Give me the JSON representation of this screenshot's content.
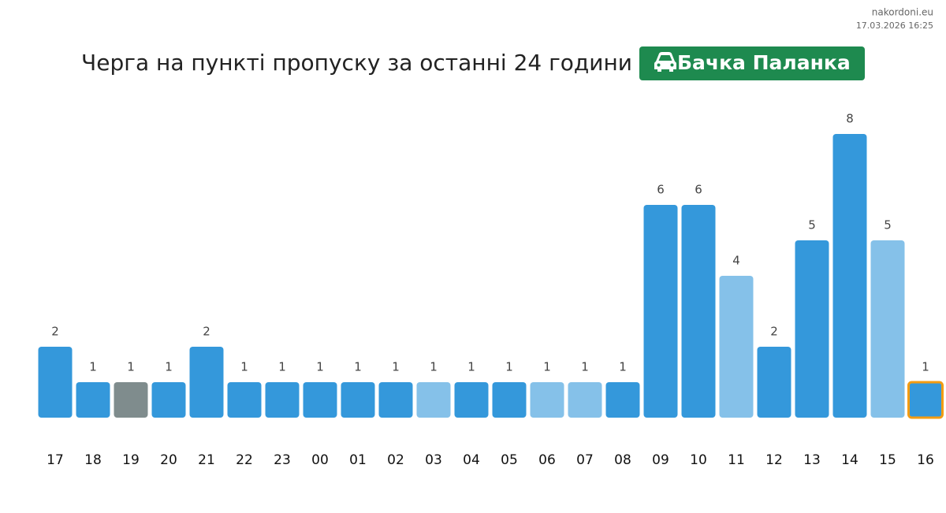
{
  "site": "nakordoni.eu",
  "timestamp": "17.03.2026 16:25",
  "chart_data": {
    "type": "bar",
    "title": "Черга на пункті пропуску за останні 24 години",
    "badge": "Бачка Паланка",
    "categories": [
      "17",
      "18",
      "19",
      "20",
      "21",
      "22",
      "23",
      "00",
      "01",
      "02",
      "03",
      "04",
      "05",
      "06",
      "07",
      "08",
      "09",
      "10",
      "11",
      "12",
      "13",
      "14",
      "15",
      "16"
    ],
    "values": [
      2,
      1,
      1,
      1,
      2,
      1,
      1,
      1,
      1,
      1,
      1,
      1,
      1,
      1,
      1,
      1,
      6,
      6,
      4,
      2,
      5,
      8,
      5,
      1
    ],
    "colors": [
      "#3498db",
      "#3498db",
      "#7f8c8d",
      "#3498db",
      "#3498db",
      "#3498db",
      "#3498db",
      "#3498db",
      "#3498db",
      "#3498db",
      "#85c1e9",
      "#3498db",
      "#3498db",
      "#85c1e9",
      "#85c1e9",
      "#3498db",
      "#3498db",
      "#3498db",
      "#85c1e9",
      "#3498db",
      "#3498db",
      "#3498db",
      "#85c1e9",
      "#3498db"
    ],
    "outline_category": "16",
    "outline_color": "#f39c12",
    "ylim": [
      0,
      8
    ]
  }
}
